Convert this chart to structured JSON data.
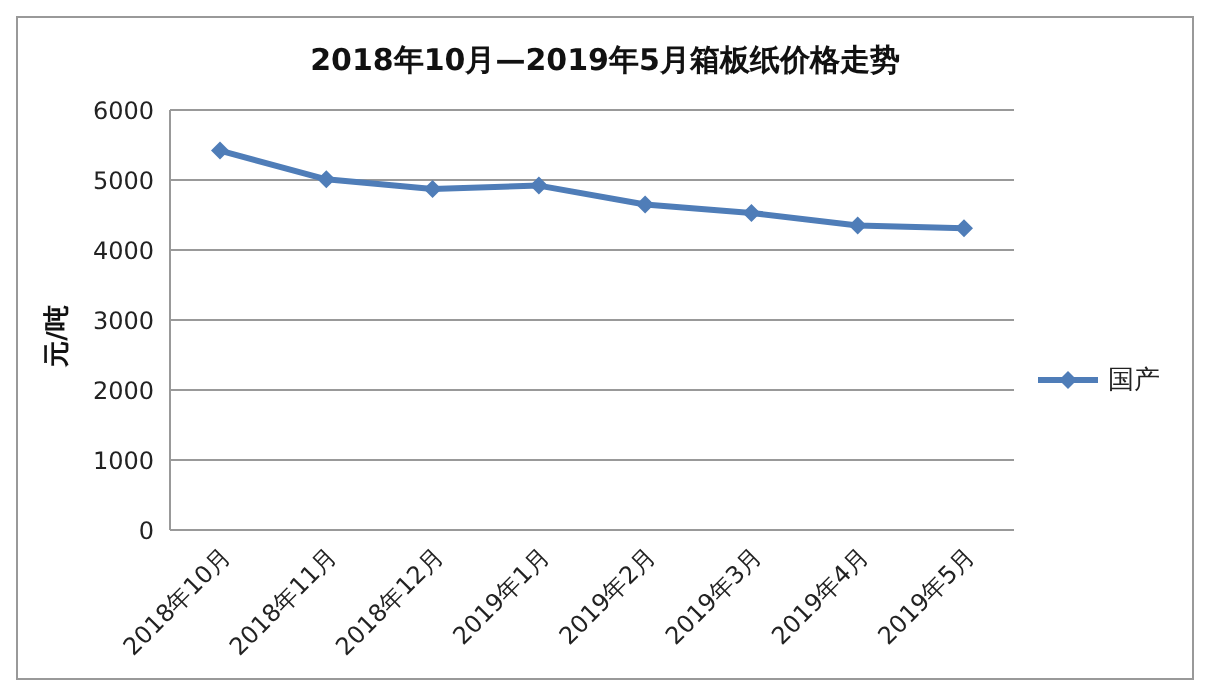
{
  "chart_data": {
    "type": "line",
    "title": "2018年10月—2019年5月箱板纸价格走势",
    "ylabel": "元/吨",
    "categories": [
      "2018年10月",
      "2018年11月",
      "2018年12月",
      "2019年1月",
      "2019年2月",
      "2019年3月",
      "2019年4月",
      "2019年5月"
    ],
    "series": [
      {
        "name": "国产",
        "color": "#4f7db8",
        "values": [
          5420,
          5010,
          4870,
          4920,
          4650,
          4530,
          4350,
          4310
        ]
      }
    ],
    "ylim": [
      0,
      6000
    ],
    "yticks": [
      0,
      1000,
      2000,
      3000,
      4000,
      5000,
      6000
    ],
    "grid": "y",
    "legend": "right",
    "marker": "diamond",
    "line_style": "solid"
  }
}
